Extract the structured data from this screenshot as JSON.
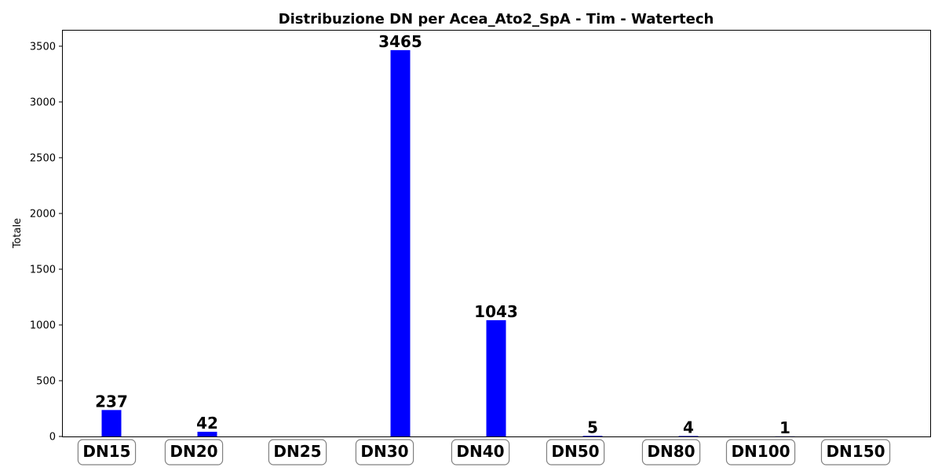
{
  "chart_data": {
    "type": "bar",
    "title": "Distribuzione DN per Acea_Ato2_SpA - Tim - Watertech",
    "xlabel": "",
    "ylabel": "Totale",
    "categories": [
      "DN15",
      "DN20",
      "DN25",
      "DN30",
      "DN40",
      "DN50",
      "DN80",
      "DN100",
      "DN150"
    ],
    "values": [
      237,
      42,
      0,
      3465,
      1043,
      5,
      4,
      1,
      0
    ],
    "data_labels": [
      "237",
      "42",
      "",
      "3465",
      "1043",
      "5",
      "4",
      "1",
      ""
    ],
    "ylim": [
      0,
      3640
    ],
    "yticks": [
      0,
      500,
      1000,
      1500,
      2000,
      2500,
      3000,
      3500
    ],
    "bar_color": "#0000ff",
    "grid": false,
    "legend": "none"
  }
}
